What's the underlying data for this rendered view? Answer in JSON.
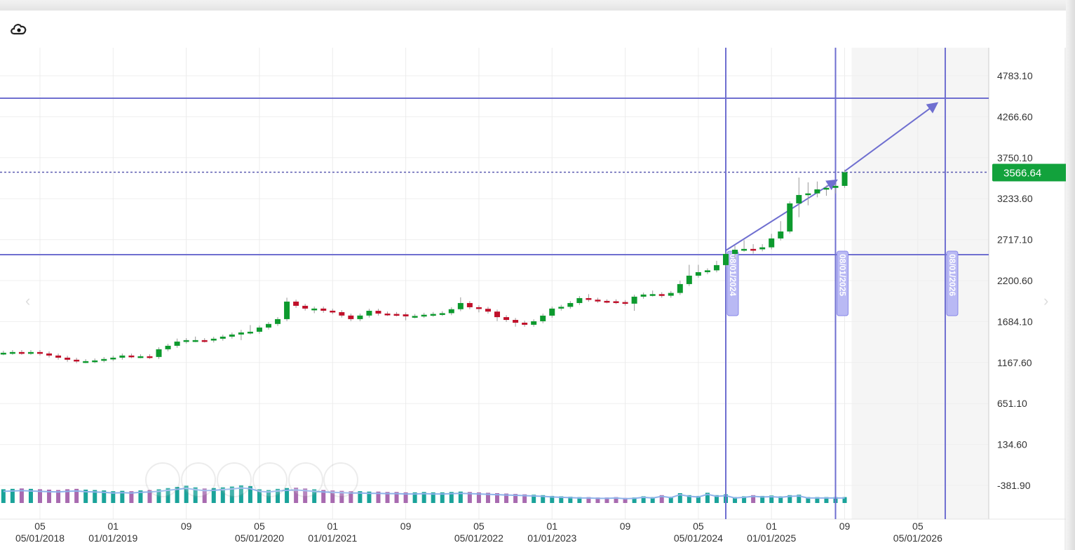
{
  "toolbar": {
    "icons": [
      "download-cloud-icon"
    ]
  },
  "colors": {
    "up": "#0d9a2e",
    "down": "#c0102a",
    "annotation": "#6f6fd0",
    "price_badge": "#12a23c",
    "volume_up": "#1aa39a",
    "volume_down": "#a86ab0",
    "volume_line": "#8fb3ea"
  },
  "chart_data": {
    "type": "candlestick",
    "interval": "monthly",
    "start_month": "2018-01",
    "open": [
      1285,
      1291,
      1300,
      1291,
      1300,
      1282,
      1256,
      1229,
      1203,
      1185,
      1185,
      1194,
      1212,
      1229,
      1256,
      1247,
      1247,
      1238,
      1335,
      1379,
      1432,
      1450,
      1450,
      1445,
      1468,
      1494,
      1521,
      1547,
      1556,
      1609,
      1654,
      1715,
      1936,
      1883,
      1848,
      1848,
      1821,
      1803,
      1760,
      1715,
      1760,
      1820,
      1785,
      1780,
      1775,
      1750,
      1755,
      1770,
      1780,
      1790,
      1840,
      1918,
      1865,
      1845,
      1810,
      1740,
      1705,
      1670,
      1644,
      1688,
      1759,
      1848,
      1870,
      1918,
      1980,
      1960,
      1945,
      1940,
      1930,
      1910,
      1998,
      2025,
      2030,
      2010,
      2045,
      2157,
      2263,
      2307,
      2330,
      2396,
      2537,
      2590,
      2600,
      2595,
      2620,
      2732,
      2820,
      3174,
      3280,
      3300,
      3351,
      3370,
      3395
    ],
    "high": [
      1316,
      1325,
      1325,
      1325,
      1325,
      1307,
      1281,
      1254,
      1228,
      1210,
      1219,
      1237,
      1254,
      1281,
      1281,
      1272,
      1272,
      1360,
      1404,
      1470,
      1475,
      1495,
      1475,
      1493,
      1519,
      1546,
      1580,
      1640,
      1634,
      1679,
      1740,
      1985,
      1961,
      1908,
      1873,
      1873,
      1846,
      1828,
      1785,
      1785,
      1845,
      1845,
      1810,
      1805,
      1800,
      1780,
      1795,
      1805,
      1815,
      1865,
      1990,
      1943,
      1890,
      1870,
      1835,
      1765,
      1730,
      1695,
      1713,
      1784,
      1873,
      1895,
      1943,
      2005,
      2030,
      1985,
      1965,
      1965,
      1955,
      2023,
      2050,
      2075,
      2055,
      2070,
      2200,
      2400,
      2400,
      2355,
      2450,
      2560,
      2640,
      2710,
      2660,
      2660,
      2790,
      2950,
      3200,
      3500,
      3440,
      3450,
      3400,
      3420,
      3600
    ],
    "low": [
      1260,
      1266,
      1266,
      1266,
      1257,
      1231,
      1204,
      1178,
      1160,
      1160,
      1160,
      1169,
      1187,
      1204,
      1222,
      1222,
      1213,
      1213,
      1310,
      1354,
      1407,
      1425,
      1420,
      1420,
      1443,
      1469,
      1450,
      1522,
      1531,
      1584,
      1629,
      1690,
      1858,
      1823,
      1790,
      1796,
      1778,
      1735,
      1690,
      1690,
      1735,
      1760,
      1755,
      1750,
      1700,
      1725,
      1730,
      1745,
      1755,
      1765,
      1815,
      1840,
      1800,
      1785,
      1690,
      1680,
      1620,
      1619,
      1619,
      1663,
      1734,
      1823,
      1845,
      1893,
      1935,
      1920,
      1915,
      1905,
      1885,
      1820,
      1973,
      2000,
      1985,
      1985,
      2020,
      2132,
      2238,
      2282,
      2305,
      2371,
      2480,
      2565,
      2540,
      2570,
      2595,
      2707,
      2795,
      3000,
      3150,
      3250,
      3270,
      3300,
      3370
    ],
    "close": [
      1291,
      1300,
      1291,
      1300,
      1282,
      1256,
      1229,
      1203,
      1185,
      1185,
      1194,
      1212,
      1229,
      1256,
      1247,
      1247,
      1238,
      1335,
      1379,
      1432,
      1450,
      1450,
      1445,
      1468,
      1494,
      1521,
      1547,
      1556,
      1609,
      1654,
      1715,
      1936,
      1883,
      1848,
      1848,
      1821,
      1803,
      1760,
      1715,
      1760,
      1820,
      1785,
      1780,
      1775,
      1750,
      1755,
      1770,
      1780,
      1790,
      1840,
      1918,
      1865,
      1845,
      1810,
      1740,
      1705,
      1670,
      1644,
      1688,
      1759,
      1848,
      1870,
      1918,
      1980,
      1960,
      1945,
      1940,
      1930,
      1910,
      1998,
      2025,
      2030,
      2010,
      2045,
      2157,
      2263,
      2307,
      2330,
      2396,
      2537,
      2590,
      2600,
      2595,
      2620,
      2732,
      2820,
      3174,
      3280,
      3300,
      3351,
      3370,
      3395,
      3566.64
    ],
    "volume_relative": [
      70,
      72,
      74,
      72,
      70,
      68,
      66,
      70,
      72,
      68,
      66,
      64,
      60,
      62,
      60,
      64,
      66,
      70,
      76,
      82,
      88,
      80,
      74,
      76,
      80,
      84,
      90,
      86,
      70,
      66,
      72,
      76,
      78,
      74,
      70,
      66,
      64,
      62,
      60,
      60,
      58,
      58,
      56,
      56,
      54,
      54,
      56,
      54,
      54,
      56,
      58,
      56,
      54,
      52,
      50,
      48,
      46,
      44,
      42,
      40,
      36,
      34,
      32,
      30,
      30,
      28,
      28,
      30,
      26,
      28,
      34,
      30,
      40,
      32,
      50,
      40,
      36,
      52,
      40,
      44,
      30,
      34,
      40,
      36,
      38,
      34,
      40,
      42,
      30,
      30,
      30,
      30,
      30
    ],
    "current_price": "3566.64",
    "y_ticks": [
      "4783.10",
      "4266.60",
      "3750.10",
      "3233.60",
      "2717.10",
      "2200.60",
      "1684.10",
      "1167.60",
      "651.10",
      "134.60",
      "-381.90"
    ],
    "x_ticks": [
      {
        "at": "2018-05",
        "top": "05",
        "bottom": "05/01/2018"
      },
      {
        "at": "2019-01",
        "top": "01",
        "bottom": "01/01/2019"
      },
      {
        "at": "2019-09",
        "top": "09",
        "bottom": ""
      },
      {
        "at": "2020-05",
        "top": "05",
        "bottom": "05/01/2020"
      },
      {
        "at": "2021-01",
        "top": "01",
        "bottom": "01/01/2021"
      },
      {
        "at": "2021-09",
        "top": "09",
        "bottom": ""
      },
      {
        "at": "2022-05",
        "top": "05",
        "bottom": "05/01/2022"
      },
      {
        "at": "2023-01",
        "top": "01",
        "bottom": "01/01/2023"
      },
      {
        "at": "2023-09",
        "top": "09",
        "bottom": ""
      },
      {
        "at": "2024-05",
        "top": "05",
        "bottom": "05/01/2024"
      },
      {
        "at": "2025-01",
        "top": "01",
        "bottom": "01/01/2025"
      },
      {
        "at": "2025-09",
        "top": "09",
        "bottom": ""
      },
      {
        "at": "2026-05",
        "top": "05",
        "bottom": "05/01/2026"
      }
    ],
    "ylim": [
      -381.9,
      4783.1
    ],
    "grid": true,
    "annotations": {
      "horizontal_lines": [
        4500,
        2528
      ],
      "vertical_lines": [
        {
          "at": "2024-08",
          "label": "08/01/2024"
        },
        {
          "at": "2025-08",
          "label": "08/01/2025"
        },
        {
          "at": "2026-08",
          "label": "08/01/2026"
        }
      ],
      "arrows": [
        {
          "from": [
            "2024-08",
            2581
          ],
          "to": [
            "2025-08",
            3457
          ]
        },
        {
          "from": [
            "2025-09",
            3580
          ],
          "to": [
            "2026-07",
            4429
          ]
        }
      ],
      "future_shade_from": "2025-10"
    }
  }
}
